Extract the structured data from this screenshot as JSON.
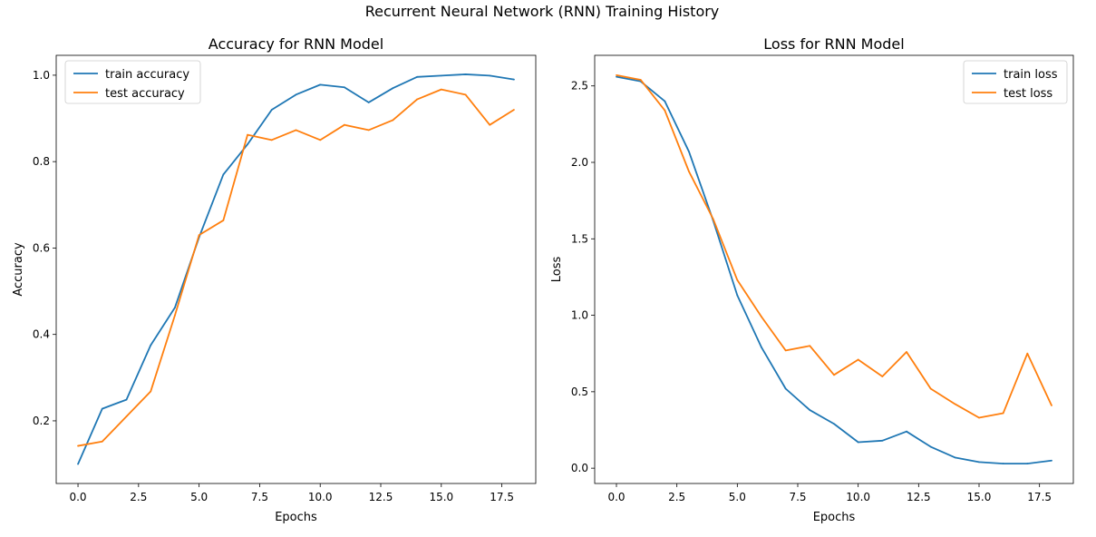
{
  "figure": {
    "suptitle": "Recurrent Neural Network (RNN) Training History"
  },
  "chart_data": [
    {
      "type": "line",
      "title": "Accuracy for RNN Model",
      "xlabel": "Epochs",
      "ylabel": "Accuracy",
      "x": [
        0,
        1,
        2,
        3,
        4,
        5,
        6,
        7,
        8,
        9,
        10,
        11,
        12,
        13,
        14,
        15,
        16,
        17,
        18
      ],
      "xlim": [
        -0.9,
        18.9
      ],
      "ylim": [
        0.055,
        1.046
      ],
      "xticks": [
        0,
        2.5,
        5,
        7.5,
        10,
        12.5,
        15,
        17.5
      ],
      "xtick_labels": [
        "0.0",
        "2.5",
        "5.0",
        "7.5",
        "10.0",
        "12.5",
        "15.0",
        "17.5"
      ],
      "yticks": [
        0.2,
        0.4,
        0.6,
        0.8,
        1.0
      ],
      "ytick_labels": [
        "0.2",
        "0.4",
        "0.6",
        "0.8",
        "1.0"
      ],
      "grid": false,
      "legend_position": "upper left",
      "series": [
        {
          "name": "train accuracy",
          "color": "#1f77b4",
          "values": [
            0.1,
            0.228,
            0.249,
            0.375,
            0.462,
            0.625,
            0.77,
            0.84,
            0.92,
            0.955,
            0.978,
            0.972,
            0.937,
            0.97,
            0.996,
            0.999,
            1.002,
            0.999,
            0.99
          ]
        },
        {
          "name": "test accuracy",
          "color": "#ff7f0e",
          "values": [
            0.142,
            0.152,
            0.21,
            0.268,
            0.444,
            0.63,
            0.664,
            0.862,
            0.85,
            0.873,
            0.85,
            0.885,
            0.873,
            0.896,
            0.944,
            0.967,
            0.955,
            0.885,
            0.92
          ]
        }
      ]
    },
    {
      "type": "line",
      "title": "Loss for RNN Model",
      "xlabel": "Epochs",
      "ylabel": "Loss",
      "x": [
        0,
        1,
        2,
        3,
        4,
        5,
        6,
        7,
        8,
        9,
        10,
        11,
        12,
        13,
        14,
        15,
        16,
        17,
        18
      ],
      "xlim": [
        -0.9,
        18.9
      ],
      "ylim": [
        -0.1,
        2.7
      ],
      "xticks": [
        0,
        2.5,
        5,
        7.5,
        10,
        12.5,
        15,
        17.5
      ],
      "xtick_labels": [
        "0.0",
        "2.5",
        "5.0",
        "7.5",
        "10.0",
        "12.5",
        "15.0",
        "17.5"
      ],
      "yticks": [
        0,
        0.5,
        1.0,
        1.5,
        2.0,
        2.5
      ],
      "ytick_labels": [
        "0.0",
        "0.5",
        "1.0",
        "1.5",
        "2.0",
        "2.5"
      ],
      "grid": false,
      "legend_position": "upper right",
      "series": [
        {
          "name": "train loss",
          "color": "#1f77b4",
          "values": [
            2.56,
            2.53,
            2.4,
            2.07,
            1.62,
            1.13,
            0.79,
            0.52,
            0.38,
            0.29,
            0.17,
            0.18,
            0.24,
            0.14,
            0.07,
            0.04,
            0.03,
            0.03,
            0.05
          ]
        },
        {
          "name": "test loss",
          "color": "#ff7f0e",
          "values": [
            2.57,
            2.54,
            2.34,
            1.94,
            1.63,
            1.23,
            0.99,
            0.77,
            0.8,
            0.61,
            0.71,
            0.6,
            0.76,
            0.52,
            0.42,
            0.33,
            0.36,
            0.75,
            0.41
          ]
        }
      ]
    }
  ]
}
